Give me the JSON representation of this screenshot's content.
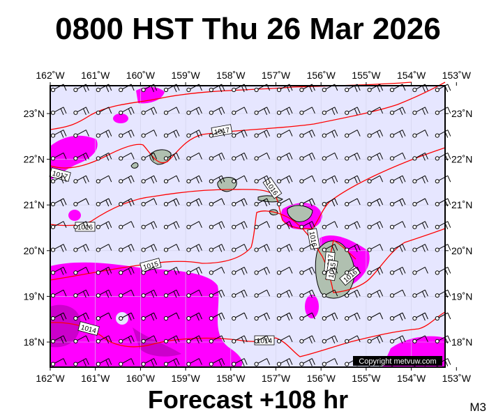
{
  "title": "0800 HST Thu 26 Mar 2026",
  "subtitle": "Forecast +108 hr",
  "model_tag": "M3",
  "copyright": "Copyright metvuw.com",
  "lon_labels": [
    "162˚W",
    "161˚W",
    "160˚W",
    "159˚W",
    "158˚W",
    "157˚W",
    "156˚W",
    "155˚W",
    "154˚W",
    "153˚W"
  ],
  "lat_labels": [
    "23˚N",
    "22˚N",
    "21˚N",
    "20˚N",
    "19˚N",
    "18˚N"
  ],
  "isobar_labels": [
    "1017",
    "1017",
    "1016",
    "1016",
    "1015",
    "1016",
    "1017",
    "1016",
    "1015",
    "1014",
    "1014"
  ],
  "colors": {
    "ocean": "#e6e6ff",
    "rain_light": "#ff00ff",
    "rain_medium": "#cc00cc",
    "isobar": "#ff0000",
    "land": "#b0c0b0"
  }
}
